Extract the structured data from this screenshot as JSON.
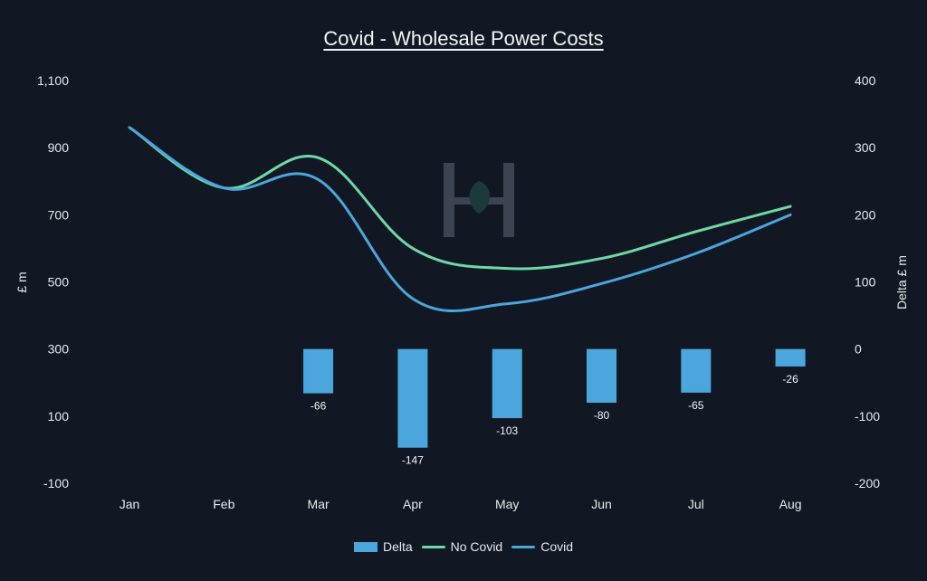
{
  "colors": {
    "background": "#111823",
    "delta_bar": "#4aa6dc",
    "no_covid_line": "#6ed8a6",
    "covid_line": "#4aa6dc",
    "text": "#e6e9ee"
  },
  "watermark_icon": "hs-logo-icon",
  "chart_data": {
    "type": "bar",
    "title": "Covid - Wholesale Power Costs",
    "categories": [
      "Jan",
      "Feb",
      "Mar",
      "Apr",
      "May",
      "Jun",
      "Jul",
      "Aug"
    ],
    "ylabel": "£ m",
    "ylabel_right": "Delta £ m",
    "ylim": [
      -100,
      1100
    ],
    "y_ticks": [
      "1,100",
      "900",
      "700",
      "500",
      "300",
      "100",
      "-100"
    ],
    "ylim_right": [
      -200,
      400
    ],
    "y_ticks_right": [
      "400",
      "300",
      "200",
      "100",
      "0",
      "-100",
      "-200"
    ],
    "grid": false,
    "legend_position": "bottom",
    "series": [
      {
        "name": "Delta",
        "type": "bar",
        "axis": "right",
        "values": [
          null,
          null,
          -66,
          -147,
          -103,
          -80,
          -65,
          -26
        ],
        "labels": [
          "",
          "",
          "-66",
          "-147",
          "-103",
          "-80",
          "-65",
          "-26"
        ]
      },
      {
        "name": "No Covid",
        "type": "line",
        "axis": "left",
        "values": [
          960,
          780,
          870,
          600,
          540,
          570,
          650,
          725
        ]
      },
      {
        "name": "Covid",
        "type": "line",
        "axis": "left",
        "values": [
          960,
          780,
          805,
          450,
          435,
          495,
          585,
          700
        ]
      }
    ]
  }
}
